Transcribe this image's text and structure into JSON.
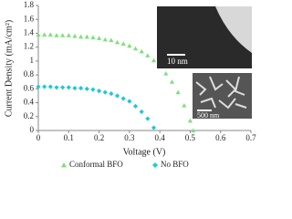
{
  "chart_data": {
    "type": "scatter",
    "xlabel": "Voltage (V)",
    "ylabel": "Current Density (mA/cm²)",
    "xlim": [
      0,
      0.7
    ],
    "xticks": [
      0,
      0.1,
      0.2,
      0.3,
      0.4,
      0.5,
      0.6,
      0.7
    ],
    "ylim": [
      0,
      1.8
    ],
    "yticks": [
      0,
      0.2,
      0.4,
      0.6,
      0.8,
      1,
      1.2,
      1.4,
      1.6,
      1.8
    ],
    "grid": false,
    "legend": "bottom",
    "series": [
      {
        "name": "Conformal BFO",
        "color": "#7ee07e",
        "marker": "triangle",
        "x": [
          0,
          0.02,
          0.04,
          0.06,
          0.08,
          0.1,
          0.12,
          0.14,
          0.16,
          0.18,
          0.2,
          0.22,
          0.24,
          0.26,
          0.28,
          0.3,
          0.32,
          0.34,
          0.36,
          0.38,
          0.4,
          0.42,
          0.44,
          0.46,
          0.48,
          0.5,
          0.51
        ],
        "values": [
          1.38,
          1.38,
          1.38,
          1.37,
          1.37,
          1.37,
          1.36,
          1.35,
          1.35,
          1.34,
          1.33,
          1.31,
          1.3,
          1.27,
          1.25,
          1.22,
          1.18,
          1.14,
          1.08,
          1.01,
          0.93,
          0.82,
          0.7,
          0.55,
          0.36,
          0.14,
          0
        ]
      },
      {
        "name": "No BFO",
        "color": "#1ec8d8",
        "marker": "diamond",
        "x": [
          0,
          0.02,
          0.04,
          0.06,
          0.08,
          0.1,
          0.12,
          0.14,
          0.16,
          0.18,
          0.2,
          0.22,
          0.24,
          0.26,
          0.28,
          0.3,
          0.32,
          0.34,
          0.36,
          0.38
        ],
        "values": [
          0.63,
          0.63,
          0.63,
          0.62,
          0.62,
          0.62,
          0.61,
          0.61,
          0.6,
          0.59,
          0.57,
          0.55,
          0.53,
          0.5,
          0.46,
          0.42,
          0.35,
          0.27,
          0.17,
          0.04
        ]
      }
    ],
    "insets": [
      {
        "label": "10 nm"
      },
      {
        "label": "500 nm"
      }
    ]
  }
}
